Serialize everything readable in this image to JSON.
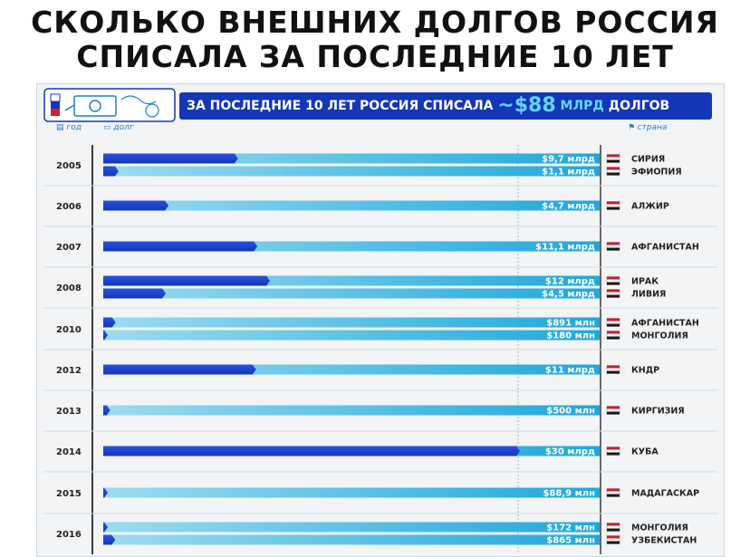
{
  "title": {
    "line1": "СКОЛЬКО ВНЕШНИХ ДОЛГОВ РОССИЯ",
    "line2": "СПИСАЛА ЗА ПОСЛЕДНИЕ 10 ЛЕТ"
  },
  "banner": {
    "prefix": "ЗА ПОСЛЕДНИЕ 10 ЛЕТ РОССИЯ СПИСАЛА ",
    "amount": "~$88",
    "unit": " МЛРД",
    "suffix": " ДОЛГОВ"
  },
  "headers": {
    "year": "год",
    "debt": "долг",
    "country": "страна"
  },
  "colors": {
    "bar_dark": "#1436b8",
    "bar_light": "#9ddcf0",
    "bar_light_end": "#1ea8dc",
    "banner": "#1436b8",
    "accent": "#62d6ff"
  },
  "chart_data": {
    "type": "bar",
    "orientation": "horizontal",
    "value_unit": "USD",
    "max_value": 30000000000,
    "groups": [
      {
        "year": "2005",
        "rows": [
          {
            "label": "$9,7 млрд",
            "value": 9700000000,
            "country": "СИРИЯ"
          },
          {
            "label": "$1,1 млрд",
            "value": 1100000000,
            "country": "ЭФИОПИЯ"
          }
        ]
      },
      {
        "year": "2006",
        "rows": [
          {
            "label": "$4,7 млрд",
            "value": 4700000000,
            "country": "АЛЖИР"
          }
        ]
      },
      {
        "year": "2007",
        "rows": [
          {
            "label": "$11,1 млрд",
            "value": 11100000000,
            "country": "АФГАНИСТАН"
          }
        ]
      },
      {
        "year": "2008",
        "rows": [
          {
            "label": "$12 млрд",
            "value": 12000000000,
            "country": "ИРАК"
          },
          {
            "label": "$4,5 млрд",
            "value": 4500000000,
            "country": "ЛИВИЯ"
          }
        ]
      },
      {
        "year": "2010",
        "rows": [
          {
            "label": "$891 млн",
            "value": 891000000,
            "country": "АФГАНИСТАН"
          },
          {
            "label": "$180 млн",
            "value": 180000000,
            "country": "МОНГОЛИЯ"
          }
        ]
      },
      {
        "year": "2012",
        "rows": [
          {
            "label": "$11 млрд",
            "value": 11000000000,
            "country": "КНДР"
          }
        ]
      },
      {
        "year": "2013",
        "rows": [
          {
            "label": "$500 млн",
            "value": 500000000,
            "country": "КИРГИЗИЯ"
          }
        ]
      },
      {
        "year": "2014",
        "rows": [
          {
            "label": "$30 млрд",
            "value": 30000000000,
            "country": "КУБА"
          }
        ]
      },
      {
        "year": "2015",
        "rows": [
          {
            "label": "$88,9 млн",
            "value": 88900000,
            "country": "МАДАГАСКАР"
          }
        ]
      },
      {
        "year": "2016",
        "rows": [
          {
            "label": "$172 млн",
            "value": 172000000,
            "country": "МОНГОЛИЯ"
          },
          {
            "label": "$865 млн",
            "value": 865000000,
            "country": "УЗБЕКИСТАН"
          }
        ]
      }
    ]
  }
}
